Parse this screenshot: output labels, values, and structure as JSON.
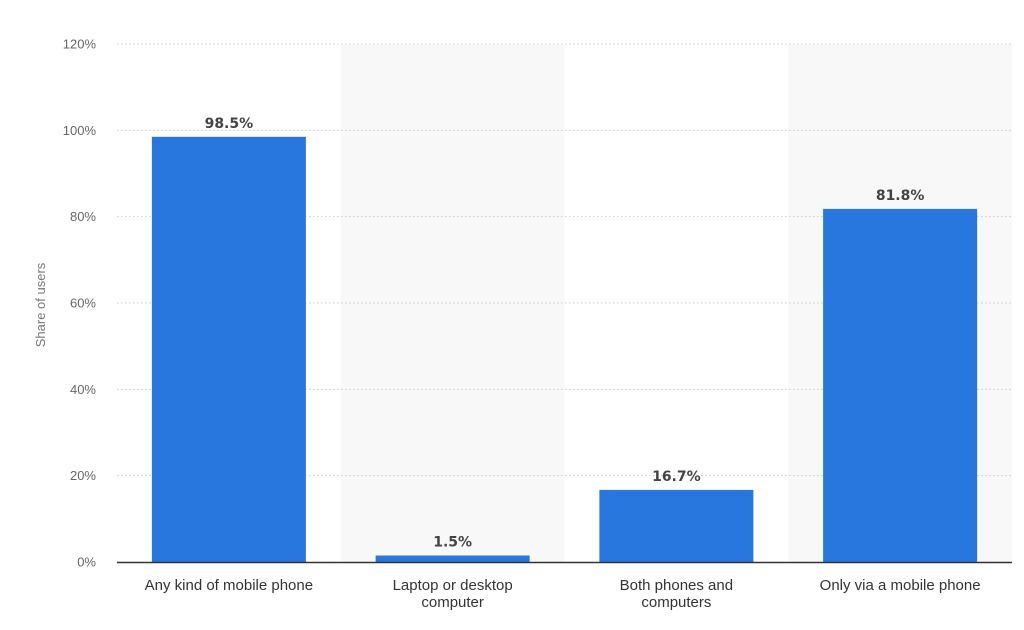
{
  "chart_data": {
    "type": "bar",
    "categories": [
      [
        "Any kind of mobile phone"
      ],
      [
        "Laptop or desktop",
        "computer"
      ],
      [
        "Both phones and",
        "computers"
      ],
      [
        "Only via a mobile phone"
      ]
    ],
    "values": [
      98.5,
      1.5,
      16.7,
      81.8
    ],
    "data_labels": [
      "98.5%",
      "1.5%",
      "16.7%",
      "81.8%"
    ],
    "title": "",
    "xlabel": "",
    "ylabel": "Share of users",
    "ylim": [
      0,
      120
    ],
    "yticks": [
      0,
      20,
      40,
      60,
      80,
      100,
      120
    ],
    "ytick_labels": [
      "0%",
      "20%",
      "40%",
      "60%",
      "80%",
      "100%",
      "120%"
    ],
    "grid": true,
    "legend": "none",
    "colors": {
      "bar": "#2777de",
      "band": "#f8f8f8",
      "grid": "#c8c8c8",
      "axis": "#333333"
    }
  }
}
